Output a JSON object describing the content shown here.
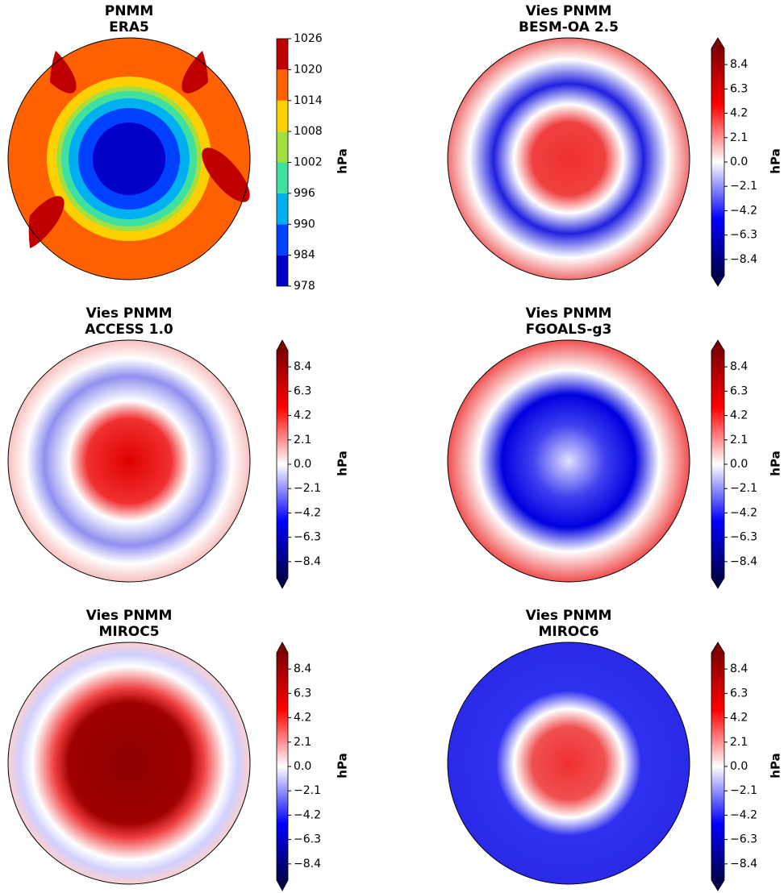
{
  "panels": [
    {
      "title_line1": "PNMM",
      "title_line2": "ERA5",
      "colorbar": {
        "label": "hPa",
        "lim": [
          978,
          1026
        ],
        "ticks": [
          978,
          984,
          990,
          996,
          1002,
          1008,
          1014,
          1020,
          1026
        ],
        "extend": false
      }
    },
    {
      "title_line1": "Vies PNMM",
      "title_line2": "BESM-OA 2.5",
      "colorbar": {
        "label": "hPa",
        "lim": [
          -9.8,
          9.8
        ],
        "ticks": [
          {
            "value": -8.4,
            "label": "−8.4"
          },
          {
            "value": -6.3,
            "label": "−6.3"
          },
          {
            "value": -4.2,
            "label": "−4.2"
          },
          {
            "value": -2.1,
            "label": "−2.1"
          },
          {
            "value": 0,
            "label": "0.0"
          },
          2.1,
          4.2,
          6.3,
          8.4
        ],
        "extend": true
      }
    },
    {
      "title_line1": "Vies PNMM",
      "title_line2": "ACCESS 1.0",
      "colorbar": {
        "label": "hPa",
        "lim": [
          -9.8,
          9.8
        ],
        "ticks": [
          {
            "value": -8.4,
            "label": "−8.4"
          },
          {
            "value": -6.3,
            "label": "−6.3"
          },
          {
            "value": -4.2,
            "label": "−4.2"
          },
          {
            "value": -2.1,
            "label": "−2.1"
          },
          {
            "value": 0,
            "label": "0.0"
          },
          2.1,
          4.2,
          6.3,
          8.4
        ],
        "extend": true
      }
    },
    {
      "title_line1": "Vies PNMM",
      "title_line2": "FGOALS-g3",
      "colorbar": {
        "label": "hPa",
        "lim": [
          -9.8,
          9.8
        ],
        "ticks": [
          {
            "value": -8.4,
            "label": "−8.4"
          },
          {
            "value": -6.3,
            "label": "−6.3"
          },
          {
            "value": -4.2,
            "label": "−4.2"
          },
          {
            "value": -2.1,
            "label": "−2.1"
          },
          {
            "value": 0,
            "label": "0.0"
          },
          2.1,
          4.2,
          6.3,
          8.4
        ],
        "extend": true
      }
    },
    {
      "title_line1": "Vies PNMM",
      "title_line2": "MIROC5",
      "colorbar": {
        "label": "hPa",
        "lim": [
          -9.8,
          9.8
        ],
        "ticks": [
          {
            "value": -8.4,
            "label": "−8.4"
          },
          {
            "value": -6.3,
            "label": "−6.3"
          },
          {
            "value": -4.2,
            "label": "−4.2"
          },
          {
            "value": -2.1,
            "label": "−2.1"
          },
          {
            "value": 0,
            "label": "0.0"
          },
          2.1,
          4.2,
          6.3,
          8.4
        ],
        "extend": true
      }
    },
    {
      "title_line1": "Vies PNMM",
      "title_line2": "MIROC6",
      "colorbar": {
        "label": "hPa",
        "lim": [
          -9.8,
          9.8
        ],
        "ticks": [
          {
            "value": -8.4,
            "label": "−8.4"
          },
          {
            "value": -6.3,
            "label": "−6.3"
          },
          {
            "value": -4.2,
            "label": "−4.2"
          },
          {
            "value": -2.1,
            "label": "−2.1"
          },
          {
            "value": 0,
            "label": "0.0"
          },
          2.1,
          4.2,
          6.3,
          8.4
        ],
        "extend": true
      }
    }
  ]
}
